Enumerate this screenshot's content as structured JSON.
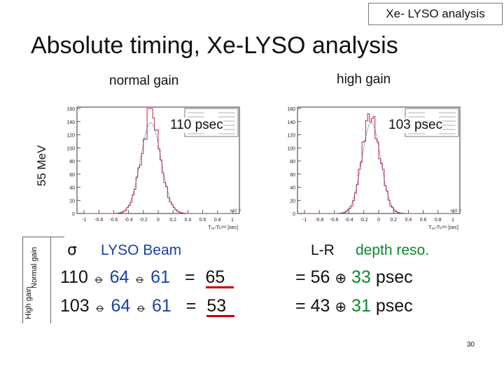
{
  "corner_tag": "Xe- LYSO analysis",
  "title": "Absolute timing, Xe-LYSO analysis",
  "columns": {
    "left": "normal gain",
    "right": "high gain"
  },
  "row_label": "55 MeV",
  "plots": {
    "left": {
      "resolution": "110 psec",
      "color": "#cc2244"
    },
    "right": {
      "resolution": "103 psec",
      "color": "#cc2244"
    },
    "yticks": [
      "160",
      "140",
      "120",
      "100",
      "80",
      "60",
      "40",
      "20",
      "0"
    ],
    "xticks": [
      "-1",
      "-0.8",
      "-0.6",
      "-0.4",
      "-0.2",
      "0",
      "0.2",
      "0.4",
      "0.6",
      "0.8",
      "1"
    ],
    "x_exponent": "×10⁻⁹",
    "xlabel": "Tₓₑ-Tʟʸˢᵒ [sec]"
  },
  "table": {
    "sigma": "σ",
    "lyso_beam": "LYSO Beam",
    "lr": "L-R",
    "depth": "depth reso.",
    "row_labels": {
      "normal": "Normal gain",
      "high": "High gain"
    },
    "rows": [
      {
        "a": "110",
        "op1": "⦵",
        "b": "64",
        "op2": "⦵",
        "c": "61",
        "eq": "=",
        "res": "65",
        "eq2": "=",
        "d": "56",
        "op3": "⊕",
        "e": "33",
        "unit": "psec"
      },
      {
        "a": "103",
        "op1": "⦵",
        "b": "64",
        "op2": "⦵",
        "c": "61",
        "eq": "=",
        "res": "53",
        "eq2": "=",
        "d": "43",
        "op3": "⊕",
        "e": "31",
        "unit": "psec"
      }
    ]
  },
  "colors": {
    "blue": "#1b40a8",
    "green": "#0a8a2a",
    "red": "#cc0000"
  },
  "page_number": "30"
}
